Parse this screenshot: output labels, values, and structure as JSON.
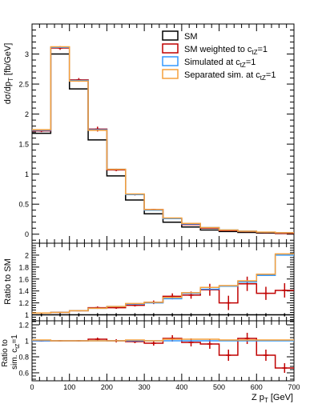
{
  "chart_data": [
    {
      "type": "line",
      "panel": "main",
      "ylabel_main": "dσ/dp",
      "ylabel_sub": "T",
      "ylabel_unit": " [fb/GeV]",
      "ylim": [
        -0.15,
        3.5
      ],
      "yticks": [
        "0",
        "0.5",
        "1",
        "1.5",
        "2",
        "2.5",
        "3"
      ],
      "xlim": [
        0,
        700
      ],
      "bin_edges": [
        0,
        50,
        100,
        150,
        200,
        250,
        300,
        350,
        400,
        450,
        500,
        550,
        600,
        650,
        700
      ],
      "legend_position": "top-right",
      "series": [
        {
          "name": "SM",
          "color": "#000000",
          "values": [
            1.68,
            3.0,
            2.42,
            1.57,
            0.97,
            0.57,
            0.34,
            0.2,
            0.12,
            0.07,
            0.045,
            0.03,
            0.02,
            0.012
          ],
          "errors": []
        },
        {
          "name": "SM weighted to c",
          "sub": "tZ",
          "suffix": "=1",
          "color": "#c00000",
          "values": [
            1.72,
            3.1,
            2.57,
            1.75,
            1.07,
            0.66,
            0.41,
            0.26,
            0.16,
            0.1,
            0.06,
            0.045,
            0.03,
            0.015
          ],
          "errors": [
            0.02,
            0.03,
            0.03,
            0.04,
            0.02,
            0.015,
            0.01,
            0.01,
            0.008,
            0.006,
            0.005,
            0.004,
            0.003,
            0.003
          ]
        },
        {
          "name": "Simulated at c",
          "sub": "tZ",
          "suffix": "=1",
          "color": "#3399ff",
          "values": [
            1.73,
            3.11,
            2.56,
            1.74,
            1.08,
            0.66,
            0.4,
            0.26,
            0.17,
            0.11,
            0.07,
            0.05,
            0.033,
            0.025
          ],
          "errors": []
        },
        {
          "name": "Separated sim. at c",
          "sub": "tZ",
          "suffix": "=1",
          "color": "#f5a03c",
          "values": [
            1.74,
            3.12,
            2.55,
            1.73,
            1.08,
            0.67,
            0.41,
            0.27,
            0.18,
            0.11,
            0.07,
            0.05,
            0.035,
            0.025
          ],
          "errors": []
        }
      ]
    },
    {
      "type": "line",
      "panel": "ratio-to-sm",
      "ylabel": "Ratio to SM",
      "ylim": [
        0.9,
        2.2
      ],
      "yticks": [
        "1",
        "1.2",
        "1.4",
        "1.6",
        "1.8",
        "2"
      ],
      "xlim": [
        0,
        700
      ],
      "bin_edges": [
        0,
        50,
        100,
        150,
        200,
        250,
        300,
        350,
        400,
        450,
        500,
        550,
        600,
        650,
        700
      ],
      "series": [
        {
          "name": "SM",
          "color": "#000000",
          "values": [
            1,
            1,
            1,
            1,
            1,
            1,
            1,
            1,
            1,
            1,
            1,
            1,
            1,
            1
          ],
          "errors": []
        },
        {
          "name": "SM weighted to c",
          "sub": "tZ",
          "suffix": "=1",
          "color": "#c00000",
          "values": [
            1.03,
            1.04,
            1.07,
            1.12,
            1.12,
            1.16,
            1.21,
            1.31,
            1.33,
            1.42,
            1.2,
            1.52,
            1.36,
            1.41
          ],
          "errors": [
            0.01,
            0.01,
            0.01,
            0.02,
            0.02,
            0.02,
            0.03,
            0.05,
            0.06,
            0.1,
            0.12,
            0.12,
            0.11,
            0.12
          ]
        },
        {
          "name": "Simulated at c",
          "sub": "tZ",
          "suffix": "=1",
          "color": "#3399ff",
          "values": [
            1.03,
            1.04,
            1.07,
            1.11,
            1.14,
            1.18,
            1.2,
            1.27,
            1.36,
            1.43,
            1.48,
            1.55,
            1.66,
            2.0
          ],
          "errors": []
        },
        {
          "name": "Separated sim. at c",
          "sub": "tZ",
          "suffix": "=1",
          "color": "#f5a03c",
          "values": [
            1.03,
            1.04,
            1.07,
            1.11,
            1.14,
            1.19,
            1.21,
            1.29,
            1.37,
            1.46,
            1.49,
            1.57,
            1.68,
            2.02
          ],
          "errors": []
        }
      ]
    },
    {
      "type": "line",
      "panel": "ratio-to-sim",
      "ylabel_line1": "Ratio to",
      "ylabel_line2": "sim. c",
      "ylabel_sub": "tZ",
      "ylabel_suffix": "=1",
      "xlabel_main": "Z p",
      "xlabel_sub": "T",
      "xlabel_unit": " [GeV]",
      "ylim": [
        0.5,
        1.25
      ],
      "yticks": [
        "0.6",
        "0.8",
        "1",
        "1.2"
      ],
      "xlim": [
        0,
        700
      ],
      "xticks": [
        "0",
        "100",
        "200",
        "300",
        "400",
        "500",
        "600",
        "700"
      ],
      "bin_edges": [
        0,
        50,
        100,
        150,
        200,
        250,
        300,
        350,
        400,
        450,
        500,
        550,
        600,
        650,
        700
      ],
      "series": [
        {
          "name": "SM weighted to c",
          "sub": "tZ",
          "suffix": "=1",
          "color": "#c00000",
          "values": [
            1.0,
            1.0,
            1.0,
            1.02,
            1.0,
            0.99,
            0.97,
            1.03,
            0.98,
            0.96,
            0.82,
            1.03,
            0.82,
            0.66
          ],
          "errors": [
            0.01,
            0.01,
            0.01,
            0.02,
            0.02,
            0.02,
            0.03,
            0.04,
            0.05,
            0.06,
            0.07,
            0.07,
            0.07,
            0.06
          ]
        },
        {
          "name": "Simulated at c",
          "sub": "tZ",
          "suffix": "=1",
          "color": "#3399ff",
          "values": [
            1,
            1,
            1,
            1,
            1,
            1,
            1,
            1,
            1,
            1,
            1,
            1,
            1,
            1
          ],
          "errors": []
        },
        {
          "name": "Separated sim. at c",
          "sub": "tZ",
          "suffix": "=1",
          "color": "#f5a03c",
          "values": [
            1.01,
            1.0,
            1.0,
            1.0,
            1.0,
            1.01,
            1.0,
            1.02,
            1.02,
            1.02,
            1.01,
            1.01,
            1.01,
            1.01
          ],
          "errors": []
        }
      ]
    }
  ]
}
